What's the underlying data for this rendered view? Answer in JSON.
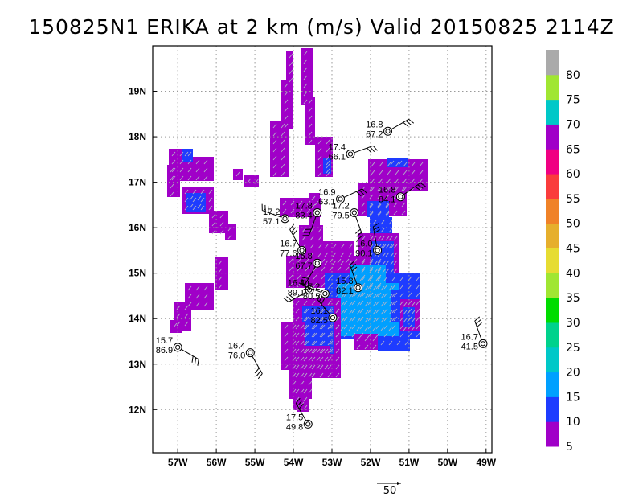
{
  "chart_data": {
    "type": "scatter",
    "title": "150825N1 ERIKA at 2 km (m/s) Valid 20150825 2114Z",
    "xlim": [
      -57.65,
      -48.85
    ],
    "ylim": [
      11.05,
      20.0
    ],
    "x_ticks": [
      {
        "value": -57,
        "label": "57W"
      },
      {
        "value": -56,
        "label": "56W"
      },
      {
        "value": -55,
        "label": "55W"
      },
      {
        "value": -54,
        "label": "54W"
      },
      {
        "value": -53,
        "label": "53W"
      },
      {
        "value": -52,
        "label": "52W"
      },
      {
        "value": -51,
        "label": "51W"
      },
      {
        "value": -50,
        "label": "50W"
      },
      {
        "value": -49,
        "label": "49W"
      }
    ],
    "y_ticks": [
      {
        "value": 12,
        "label": "12N"
      },
      {
        "value": 13,
        "label": "13N"
      },
      {
        "value": 14,
        "label": "14N"
      },
      {
        "value": 15,
        "label": "15N"
      },
      {
        "value": 16,
        "label": "16N"
      },
      {
        "value": 17,
        "label": "17N"
      },
      {
        "value": 18,
        "label": "18N"
      },
      {
        "value": 19,
        "label": "19N"
      }
    ],
    "grid": true,
    "colorbar": {
      "levels": [
        {
          "label": "5",
          "color": "#a000c8"
        },
        {
          "label": "10",
          "color": "#1e3cff"
        },
        {
          "label": "15",
          "color": "#00a0ff"
        },
        {
          "label": "20",
          "color": "#00c8c8"
        },
        {
          "label": "25",
          "color": "#00d28c"
        },
        {
          "label": "30",
          "color": "#00dc00"
        },
        {
          "label": "35",
          "color": "#a0e632"
        },
        {
          "label": "40",
          "color": "#e6dc32"
        },
        {
          "label": "45",
          "color": "#e6af2d"
        },
        {
          "label": "50",
          "color": "#f08228"
        },
        {
          "label": "55",
          "color": "#fa3c3c"
        },
        {
          "label": "60",
          "color": "#f00082"
        },
        {
          "label": "65",
          "color": "#a000c8"
        },
        {
          "label": "70",
          "color": "#00c8c8"
        },
        {
          "label": "75",
          "color": "#a0e632"
        },
        {
          "label": "80",
          "color": "#aaaaaa"
        }
      ]
    },
    "stations": [
      {
        "lon": -51.55,
        "lat": 18.12,
        "label": "16.8",
        "value": "67.2"
      },
      {
        "lon": -52.52,
        "lat": 17.62,
        "label": "17.4",
        "value": "66.1"
      },
      {
        "lon": -52.78,
        "lat": 16.63,
        "label": "16.9",
        "value": "63.1"
      },
      {
        "lon": -51.22,
        "lat": 16.68,
        "label": "16.8",
        "value": "84.1"
      },
      {
        "lon": -54.22,
        "lat": 16.2,
        "label": "17.2",
        "value": "57.1"
      },
      {
        "lon": -53.38,
        "lat": 16.33,
        "label": "17.8",
        "value": "83.4"
      },
      {
        "lon": -52.42,
        "lat": 16.33,
        "label": "17.2",
        "value": "79.5"
      },
      {
        "lon": -53.78,
        "lat": 15.5,
        "label": "16.7",
        "value": "77.6"
      },
      {
        "lon": -51.82,
        "lat": 15.5,
        "label": "16.0",
        "value": "90.1"
      },
      {
        "lon": -53.38,
        "lat": 15.22,
        "label": "16.8",
        "value": "67.7"
      },
      {
        "lon": -53.58,
        "lat": 14.63,
        "label": "16.4",
        "value": "89.1"
      },
      {
        "lon": -53.18,
        "lat": 14.55,
        "label": "17.2",
        "value": "80.5"
      },
      {
        "lon": -52.32,
        "lat": 14.68,
        "label": "15.3",
        "value": "82.1"
      },
      {
        "lon": -52.98,
        "lat": 14.02,
        "label": "16.1",
        "value": "82.5"
      },
      {
        "lon": -55.12,
        "lat": 13.25,
        "label": "16.4",
        "value": "76.0"
      },
      {
        "lon": -57.0,
        "lat": 13.37,
        "label": "15.7",
        "value": "86.9"
      },
      {
        "lon": -49.08,
        "lat": 13.45,
        "label": "16.7",
        "value": "41.5"
      },
      {
        "lon": -53.62,
        "lat": 11.68,
        "label": "17.5",
        "value": "49.8"
      }
    ],
    "reference_vector_label": "50"
  }
}
